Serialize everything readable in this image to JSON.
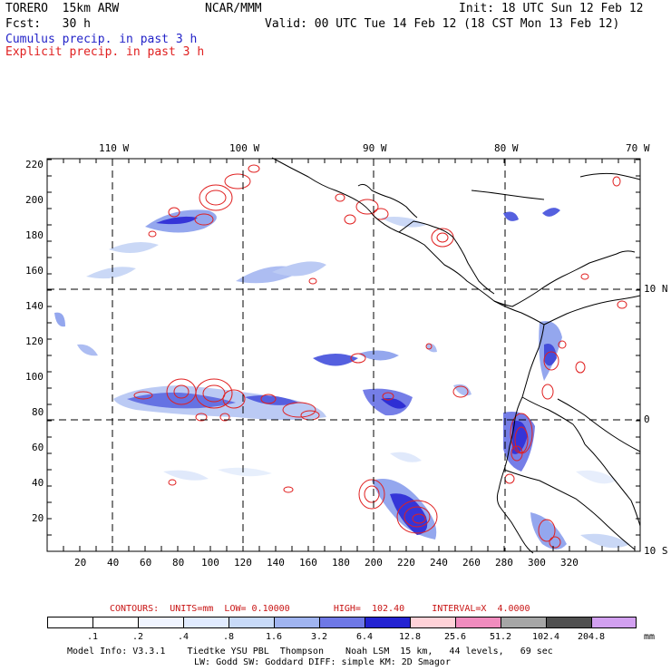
{
  "header": {
    "model": "TORERO  15km ARW",
    "org": "NCAR/MMM",
    "init": "Init: 18 UTC Sun 12 Feb 12",
    "fcst": "Fcst:   30 h",
    "valid": "Valid: 00 UTC Tue 14 Feb 12 (18 CST Mon 13 Feb 12)",
    "legend_cumulus": "Cumulus precip. in past 3 h",
    "legend_explicit": "Explicit precip. in past 3 h",
    "cumulus_color": "#2323c8",
    "explicit_color": "#e02020"
  },
  "map": {
    "lon_labels": [
      "110 W",
      "100 W",
      "90 W",
      "80 W",
      "70 W"
    ],
    "lat_labels": [
      "10 N",
      "0",
      "10 S"
    ],
    "y_ticks": [
      "220",
      "200",
      "180",
      "160",
      "140",
      "120",
      "100",
      "80",
      "60",
      "40",
      "20"
    ],
    "x_ticks": [
      "20",
      "40",
      "60",
      "80",
      "100",
      "120",
      "140",
      "160",
      "180",
      "200",
      "220",
      "240",
      "260",
      "280",
      "300",
      "320"
    ]
  },
  "contours": {
    "label": "CONTOURS:  UNITS=mm  LOW= 0.10000        HIGH=  102.40     INTERVAL=X  4.0000",
    "color": "#c81414"
  },
  "colorbar": {
    "labels": [
      ".1",
      ".2",
      ".4",
      ".8",
      "1.6",
      "3.2",
      "6.4",
      "12.8",
      "25.6",
      "51.2",
      "102.4",
      "204.8"
    ],
    "units": "mm",
    "colors": [
      "#ffffff",
      "#ffffff",
      "#f0f4ff",
      "#e1ebff",
      "#c8daf8",
      "#a0b4f0",
      "#6e78e6",
      "#2323d2",
      "#ffd2d8",
      "#f08cbe",
      "#a6a6a6",
      "#505050",
      "#d2a0f0"
    ]
  },
  "footer": {
    "line1": "Model Info: V3.3.1    Tiedtke YSU PBL  Thompson    Noah LSM  15 km,   44 levels,   69 sec",
    "line2": "LW: Godd SW: Goddard DIFF: simple KM: 2D Smagor"
  }
}
